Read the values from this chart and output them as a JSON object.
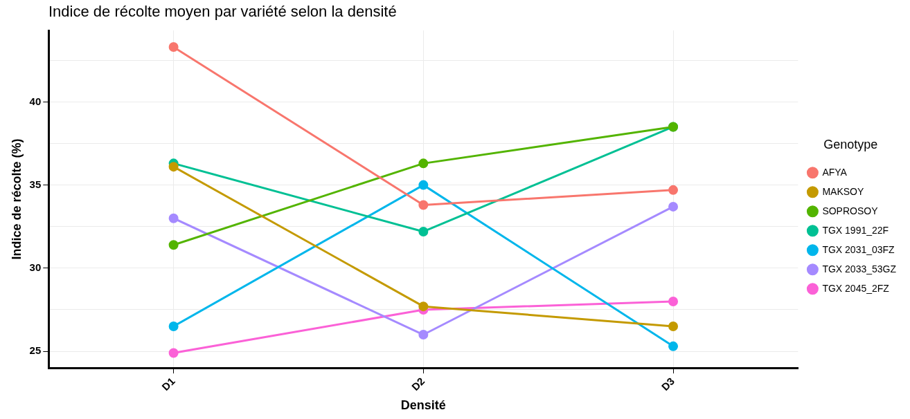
{
  "chart_data": {
    "type": "line",
    "title": "Indice de récolte moyen par variété selon la densité",
    "xlabel": "Densité",
    "ylabel": "Indice de récolte (%)",
    "legend_title": "Genotype",
    "categories": [
      "D1",
      "D2",
      "D3"
    ],
    "series": [
      {
        "name": "AFYA",
        "color": "#f8766d",
        "values": [
          43.3,
          33.8,
          34.7
        ]
      },
      {
        "name": "MAKSOY",
        "color": "#c49a00",
        "values": [
          36.1,
          27.7,
          26.5
        ]
      },
      {
        "name": "SOPROSOY",
        "color": "#53b400",
        "values": [
          31.4,
          36.3,
          38.5
        ]
      },
      {
        "name": "TGX 1991_22F",
        "color": "#00c094",
        "values": [
          36.3,
          32.2,
          38.5
        ]
      },
      {
        "name": "TGX 2031_03FZ",
        "color": "#00b6eb",
        "values": [
          26.5,
          35.0,
          25.3
        ]
      },
      {
        "name": "TGX 2033_53GZ",
        "color": "#a58aff",
        "values": [
          33.0,
          26.0,
          33.7
        ]
      },
      {
        "name": "TGX 2045_2FZ",
        "color": "#fb61d7",
        "values": [
          24.9,
          27.5,
          28.0
        ]
      }
    ],
    "ylim": [
      24,
      44.3
    ],
    "yticks": [
      25,
      {
        "value": 27.5,
        "label": null
      },
      30,
      {
        "value": 32.5,
        "label": null
      },
      35,
      {
        "value": 37.5,
        "label": null
      },
      40,
      {
        "value": 42.5,
        "label": null
      }
    ],
    "grid": true,
    "legend": "right",
    "marker": "circle",
    "line_style": "solid"
  }
}
